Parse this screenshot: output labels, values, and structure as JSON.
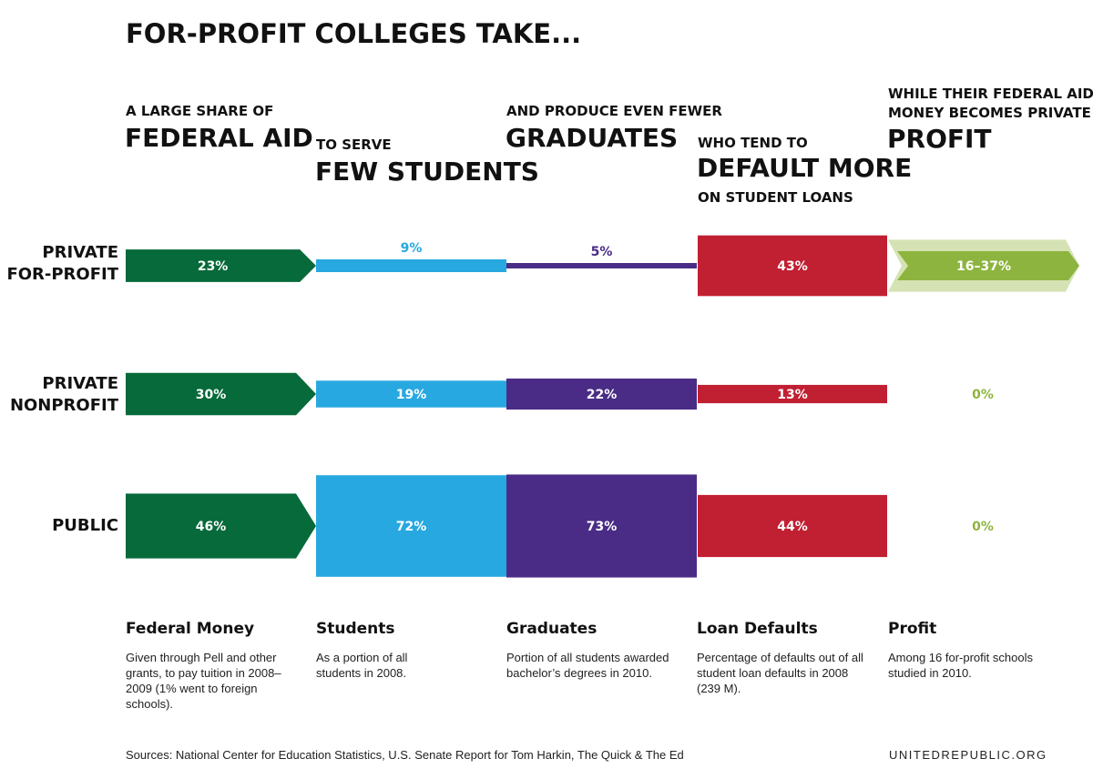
{
  "title": "FOR-PROFIT COLLEGES TAKE...",
  "headers": [
    {
      "small_top": "A LARGE SHARE OF",
      "big": "FEDERAL AID"
    },
    {
      "small_top": "TO SERVE",
      "big": "FEW STUDENTS"
    },
    {
      "small_top": "AND PRODUCE EVEN FEWER",
      "big": "GRADUATES"
    },
    {
      "small_top": "WHO TEND TO",
      "big": "DEFAULT MORE",
      "small_bottom": "ON STUDENT LOANS"
    },
    {
      "small_top_1": "WHILE THEIR FEDERAL AID",
      "small_top_2": "MONEY BECOMES PRIVATE",
      "big": "PROFIT"
    }
  ],
  "row_labels": [
    {
      "line1": "PRIVATE",
      "line2": "FOR-PROFIT"
    },
    {
      "line1": "PRIVATE",
      "line2": "NONPROFIT"
    },
    {
      "line1": "PUBLIC",
      "line2": ""
    }
  ],
  "colors": {
    "federal_money": "#066a3a",
    "students": "#27a8e0",
    "graduates": "#4a2c86",
    "loan_defaults": "#c11f32",
    "profit": "#8db43e",
    "profit_light": "#d5e3b4"
  },
  "chart_data": {
    "type": "bar",
    "categories": [
      "Private For-Profit",
      "Private Nonprofit",
      "Public"
    ],
    "series": [
      {
        "name": "Federal Money",
        "values": [
          23,
          30,
          46
        ],
        "labels": [
          "23%",
          "30%",
          "46%"
        ]
      },
      {
        "name": "Students",
        "values": [
          9,
          19,
          72
        ],
        "labels": [
          "9%",
          "19%",
          "72%"
        ]
      },
      {
        "name": "Graduates",
        "values": [
          5,
          22,
          73
        ],
        "labels": [
          "5%",
          "22%",
          "73%"
        ]
      },
      {
        "name": "Loan Defaults",
        "values": [
          43,
          13,
          44
        ],
        "labels": [
          "43%",
          "13%",
          "44%"
        ]
      },
      {
        "name": "Profit",
        "values": [
          37,
          0,
          0
        ],
        "range_low": [
          16,
          0,
          0
        ],
        "labels": [
          "16–37%",
          "0%",
          "0%"
        ]
      }
    ]
  },
  "legend": [
    {
      "title": "Federal Money",
      "desc": "Given through Pell and other grants, to pay tuition in 2008–2009 (1% went to foreign schools)."
    },
    {
      "title": "Students",
      "desc": "As a portion of all students in 2008."
    },
    {
      "title": "Graduates",
      "desc": "Portion of all students awarded bachelor’s degrees in 2010."
    },
    {
      "title": "Loan Defaults",
      "desc": "Percentage of defaults out of all student loan defaults in 2008 (239 M)."
    },
    {
      "title": "Profit",
      "desc": "Among 16 for-profit schools studied in 2010."
    }
  ],
  "footer": {
    "sources": "Sources: National Center for Education Statistics, U.S. Senate Report for Tom Harkin, The Quick & The Ed",
    "site": "UNITEDREPUBLIC.ORG"
  }
}
